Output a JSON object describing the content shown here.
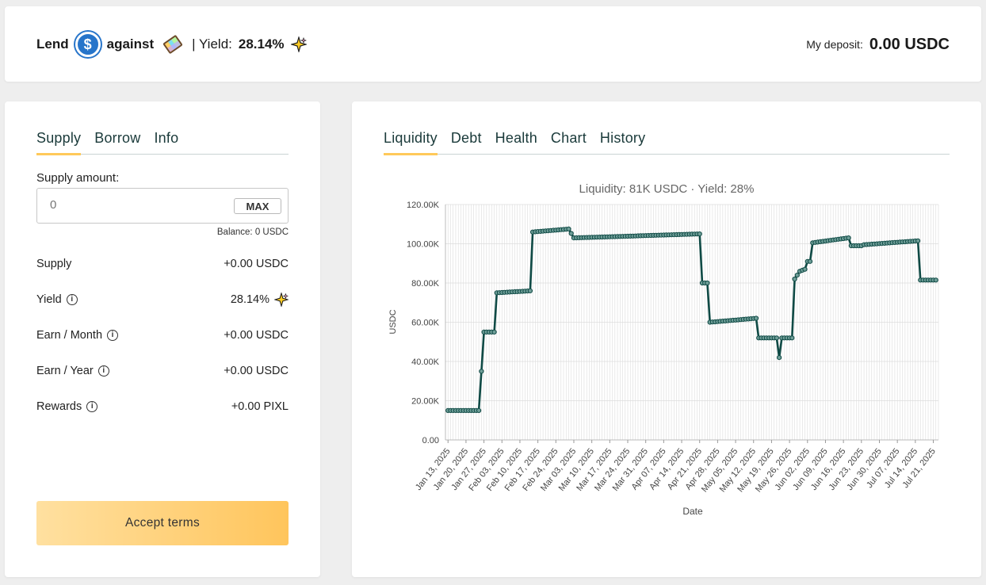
{
  "header": {
    "lend_label": "Lend",
    "token_icon": "usdc-coin-icon",
    "against_label": "against",
    "collateral_icon": "rainbow-gem-icon",
    "yield_prefix": "| Yield:",
    "yield_value": "28.14%",
    "deposit_label": "My deposit:",
    "deposit_value": "0.00 USDC"
  },
  "left": {
    "tabs": [
      {
        "label": "Supply",
        "active": true
      },
      {
        "label": "Borrow",
        "active": false
      },
      {
        "label": "Info",
        "active": false
      }
    ],
    "supply_amount_label": "Supply amount:",
    "amount_placeholder": "0",
    "max_label": "MAX",
    "balance_text": "Balance: 0 USDC",
    "stats": [
      {
        "name": "Supply",
        "value": "+0.00 USDC",
        "info": false
      },
      {
        "name": "Yield",
        "value": "28.14%",
        "info": true,
        "sparkle": true
      },
      {
        "name": "Earn / Month",
        "value": "+0.00 USDC",
        "info": true
      },
      {
        "name": "Earn / Year",
        "value": "+0.00 USDC",
        "info": true
      },
      {
        "name": "Rewards",
        "value": "+0.00 PIXL",
        "info": true
      }
    ],
    "accept_label": "Accept terms"
  },
  "right": {
    "tabs": [
      {
        "label": "Liquidity",
        "active": true
      },
      {
        "label": "Debt",
        "active": false
      },
      {
        "label": "Health",
        "active": false
      },
      {
        "label": "Chart",
        "active": false
      },
      {
        "label": "History",
        "active": false
      }
    ]
  },
  "colors": {
    "accent": "#ffc95a",
    "line": "#0f4a45",
    "usdc": "#2775ca"
  },
  "chart_data": {
    "type": "line",
    "title": "Liquidity: 81K USDC · Yield: 28%",
    "xlabel": "Date",
    "ylabel": "USDC",
    "ylim": [
      0,
      120000
    ],
    "yticks": [
      "0.00",
      "20.00K",
      "40.00K",
      "60.00K",
      "80.00K",
      "100.00K",
      "120.00K"
    ],
    "xticks": [
      "Jan 13, 2025",
      "Jan 20, 2025",
      "Jan 27, 2025",
      "Feb 03, 2025",
      "Feb 10, 2025",
      "Feb 17, 2025",
      "Feb 24, 2025",
      "Mar 03, 2025",
      "Mar 10, 2025",
      "Mar 17, 2025",
      "Mar 24, 2025",
      "Mar 31, 2025",
      "Apr 07, 2025",
      "Apr 14, 2025",
      "Apr 21, 2025",
      "Apr 28, 2025",
      "May 05, 2025",
      "May 12, 2025",
      "May 19, 2025",
      "May 26, 2025",
      "Jun 02, 2025",
      "Jun 09, 2025",
      "Jun 16, 2025",
      "Jun 23, 2025",
      "Jun 30, 2025",
      "Jul 07, 2025",
      "Jul 14, 2025",
      "Jul 21, 2025"
    ],
    "grid": true,
    "series": [
      {
        "values": [
          [
            "2025-01-13",
            15000
          ],
          [
            "2025-01-25",
            15000
          ],
          [
            "2025-01-26",
            35000
          ],
          [
            "2025-01-27",
            55000
          ],
          [
            "2025-01-31",
            55000
          ],
          [
            "2025-02-01",
            75000
          ],
          [
            "2025-02-14",
            76000
          ],
          [
            "2025-02-15",
            106000
          ],
          [
            "2025-03-01",
            107500
          ],
          [
            "2025-03-03",
            103000
          ],
          [
            "2025-04-21",
            105000
          ],
          [
            "2025-04-22",
            80000
          ],
          [
            "2025-04-24",
            80000
          ],
          [
            "2025-04-25",
            60000
          ],
          [
            "2025-05-13",
            62000
          ],
          [
            "2025-05-14",
            52000
          ],
          [
            "2025-05-21",
            52000
          ],
          [
            "2025-05-22",
            42000
          ],
          [
            "2025-05-23",
            52000
          ],
          [
            "2025-05-27",
            52000
          ],
          [
            "2025-05-28",
            82000
          ],
          [
            "2025-05-30",
            86000
          ],
          [
            "2025-06-01",
            87000
          ],
          [
            "2025-06-02",
            91000
          ],
          [
            "2025-06-03",
            91000
          ],
          [
            "2025-06-04",
            100500
          ],
          [
            "2025-06-18",
            103000
          ],
          [
            "2025-06-19",
            99000
          ],
          [
            "2025-06-23",
            99000
          ],
          [
            "2025-06-24",
            99500
          ],
          [
            "2025-07-15",
            101500
          ],
          [
            "2025-07-16",
            81500
          ],
          [
            "2025-07-22",
            81500
          ]
        ]
      }
    ]
  }
}
